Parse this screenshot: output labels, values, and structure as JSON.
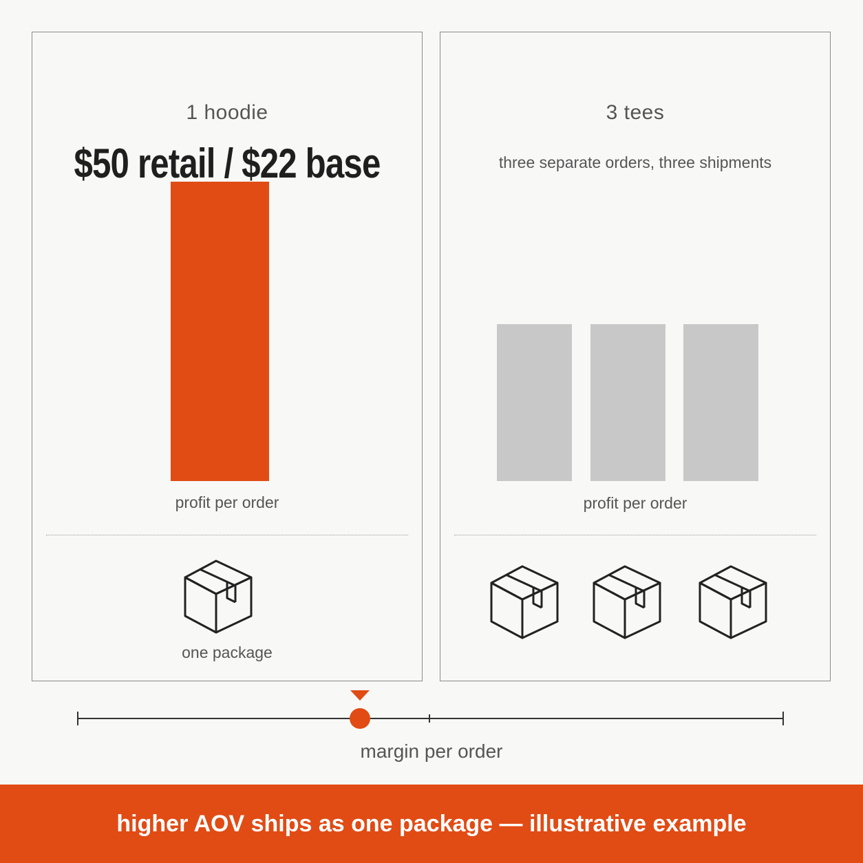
{
  "left_panel": {
    "subtitle": "1 hoodie",
    "headline": "$50 retail / $22 base",
    "bar_label": "profit per order",
    "package_label": "one package",
    "bar_color": "#e14b14",
    "bars": [
      {
        "relative_height": 1.0
      }
    ],
    "packages": [
      {
        "icon": "package-box-icon"
      }
    ]
  },
  "right_panel": {
    "subtitle": "3 tees",
    "note": "three separate orders, three shipments",
    "bar_label": "profit per order",
    "bar_color": "#c8c8c8",
    "bars": [
      {
        "relative_height": 0.52
      },
      {
        "relative_height": 0.52
      },
      {
        "relative_height": 0.52
      }
    ],
    "packages": [
      {
        "icon": "package-box-icon"
      },
      {
        "icon": "package-box-icon"
      },
      {
        "icon": "package-box-icon"
      }
    ]
  },
  "scale": {
    "label": "margin per order",
    "marker_position": 0.4,
    "marker_color": "#e14b14"
  },
  "footer": {
    "text": "higher AOV ships as one package — illustrative example",
    "background": "#e14b14"
  }
}
